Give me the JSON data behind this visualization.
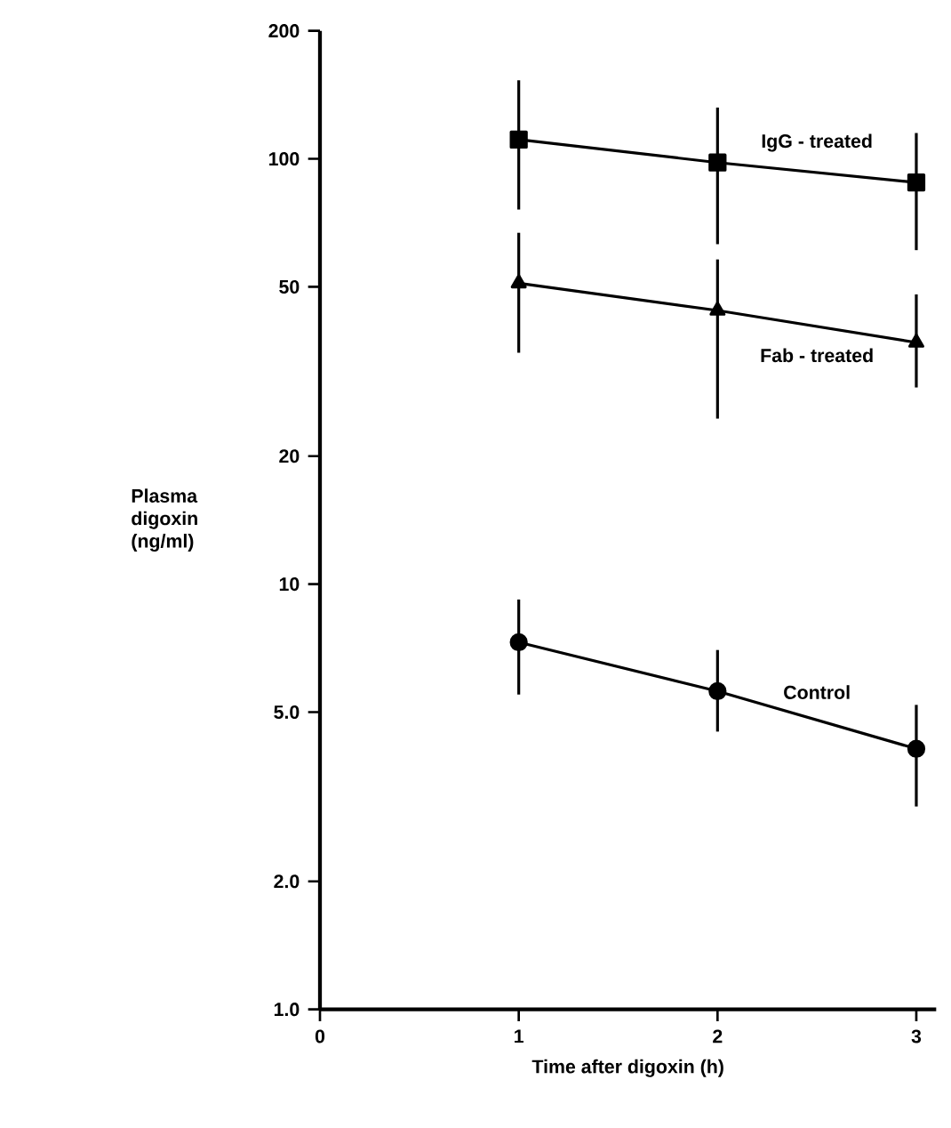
{
  "chart_data": {
    "type": "line",
    "xlabel": "Time after digoxin (h)",
    "ylabel": "Plasma digoxin (ng/ml)",
    "x": [
      1,
      2,
      3
    ],
    "series": [
      {
        "name": "IgG - treated",
        "color": "#000000",
        "marker": "square",
        "values": [
          111,
          98,
          88
        ],
        "errors": [
          [
            76,
            153
          ],
          [
            63,
            132
          ],
          [
            61,
            115
          ]
        ]
      },
      {
        "name": "Fab - treated",
        "color": "#000000",
        "marker": "triangle",
        "values": [
          51,
          44,
          37
        ],
        "errors": [
          [
            35,
            67
          ],
          [
            24.5,
            58
          ],
          [
            29,
            48
          ]
        ]
      },
      {
        "name": "Control",
        "color": "#000000",
        "marker": "circle",
        "values": [
          7.3,
          5.6,
          4.1
        ],
        "errors": [
          [
            5.5,
            9.2
          ],
          [
            4.5,
            7.0
          ],
          [
            3.0,
            5.2
          ]
        ]
      }
    ],
    "log": "y",
    "xlim": [
      0,
      3.1
    ],
    "ylim": [
      1,
      200
    ],
    "xticks": [
      0,
      1,
      2,
      3
    ],
    "yticks": [
      {
        "value": 1,
        "label": "1.0"
      },
      {
        "value": 2,
        "label": "2.0"
      },
      {
        "value": 5,
        "label": "5.0"
      },
      10,
      20,
      50,
      100,
      200
    ],
    "grid": false,
    "legend": false,
    "line_style": "solid"
  }
}
